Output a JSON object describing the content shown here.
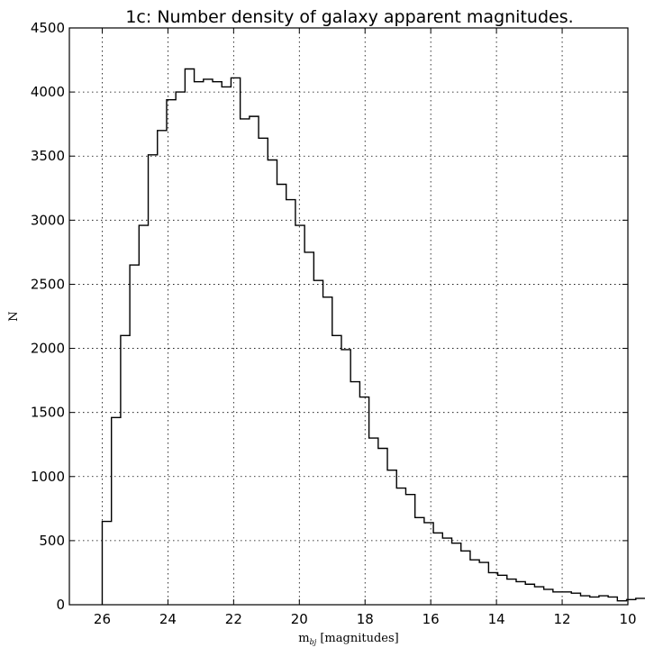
{
  "chart_data": {
    "type": "histogram",
    "title": "1c: Number density of galaxy apparent magnitudes.",
    "ylabel": "N",
    "xlabel": {
      "text": "m",
      "subscript": "bj",
      "suffix": " [magnitudes]"
    },
    "x_inverted": true,
    "xlim": [
      27.0,
      10.0
    ],
    "ylim": [
      0,
      4500
    ],
    "xticks": [
      26,
      24,
      22,
      20,
      18,
      16,
      14,
      12,
      10
    ],
    "yticks": [
      0,
      500,
      1000,
      1500,
      2000,
      2500,
      3000,
      3500,
      4000,
      4500
    ],
    "grid": true,
    "bin_start": 26.0,
    "bin_width": 0.28,
    "values": [
      650,
      1460,
      2100,
      2650,
      2960,
      3510,
      3700,
      3940,
      4000,
      4180,
      4080,
      4100,
      4080,
      4040,
      4110,
      3790,
      3810,
      3640,
      3470,
      3280,
      3160,
      2960,
      2750,
      2530,
      2400,
      2100,
      1990,
      1740,
      1620,
      1300,
      1220,
      1050,
      910,
      860,
      680,
      640,
      560,
      520,
      480,
      420,
      350,
      330,
      250,
      230,
      200,
      180,
      160,
      140,
      120,
      100,
      100,
      90,
      70,
      60,
      70,
      60,
      30,
      40,
      50
    ]
  }
}
